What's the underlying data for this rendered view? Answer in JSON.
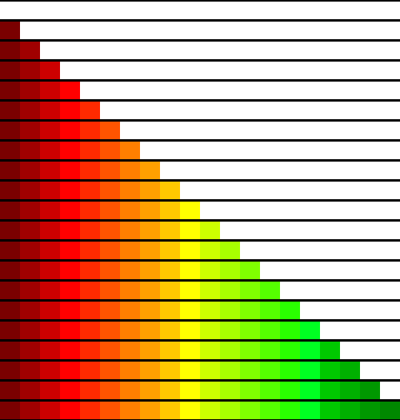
{
  "swatch_colors": [
    "#7a0000",
    "#a00000",
    "#cc0000",
    "#ff0000",
    "#ff2a00",
    "#ff5400",
    "#ff7f00",
    "#ffa000",
    "#ffc800",
    "#ffff00",
    "#ccff00",
    "#a8ff00",
    "#80ff00",
    "#55ff00",
    "#2aff00",
    "#00ff22",
    "#00c800",
    "#00b000",
    "#009800",
    "#008800",
    "#1e7a1e"
  ],
  "strip_count": 21,
  "background_color": "#000000",
  "empty_color": "#ffffff"
}
